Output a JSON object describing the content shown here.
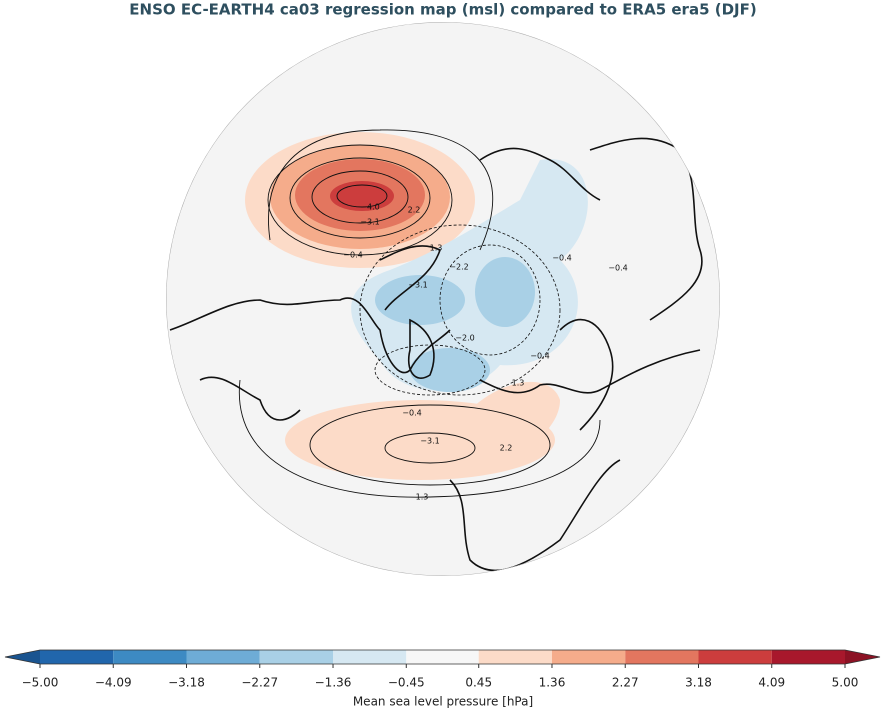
{
  "title": "ENSO EC-EARTH4 ca03 regression map (msl) compared to ERA5 era5 (DJF)",
  "map": {
    "contour_labels": [
      "−4.0",
      "−3.1",
      "2.2",
      "−0.4",
      "1.3",
      "−2.2",
      "−3.1",
      "−2.0",
      "−0.4",
      "−0.4",
      "−0.4",
      "1.3",
      "−0.4",
      "−3.1",
      "2.2",
      "1.3"
    ]
  },
  "colorbar": {
    "label": "Mean sea level pressure [hPa]",
    "lim": [
      -5,
      5
    ],
    "ticks": [
      {
        "value": -5,
        "label": "−5.00"
      },
      {
        "value": -4.09,
        "label": "−4.09"
      },
      {
        "value": -3.18,
        "label": "−3.18"
      },
      {
        "value": -2.27,
        "label": "−2.27"
      },
      {
        "value": -1.36,
        "label": "−1.36"
      },
      {
        "value": -0.45,
        "label": "−0.45"
      },
      {
        "value": 0.45,
        "label": "0.45"
      },
      {
        "value": 1.36,
        "label": "1.36"
      },
      {
        "value": 2.27,
        "label": "2.27"
      },
      {
        "value": 3.18,
        "label": "3.18"
      },
      {
        "value": 4.09,
        "label": "4.09"
      },
      {
        "value": 5,
        "label": "5.00"
      }
    ],
    "colors": [
      "#2166ac",
      "#3d8ac3",
      "#6eacd6",
      "#a9d0e6",
      "#d6e8f2",
      "#f7f7f7",
      "#fcdbc8",
      "#f5ac8b",
      "#e3765f",
      "#cc3d3d",
      "#a8182c"
    ],
    "extend_colors": [
      "#1a5490",
      "#8c1224"
    ]
  }
}
